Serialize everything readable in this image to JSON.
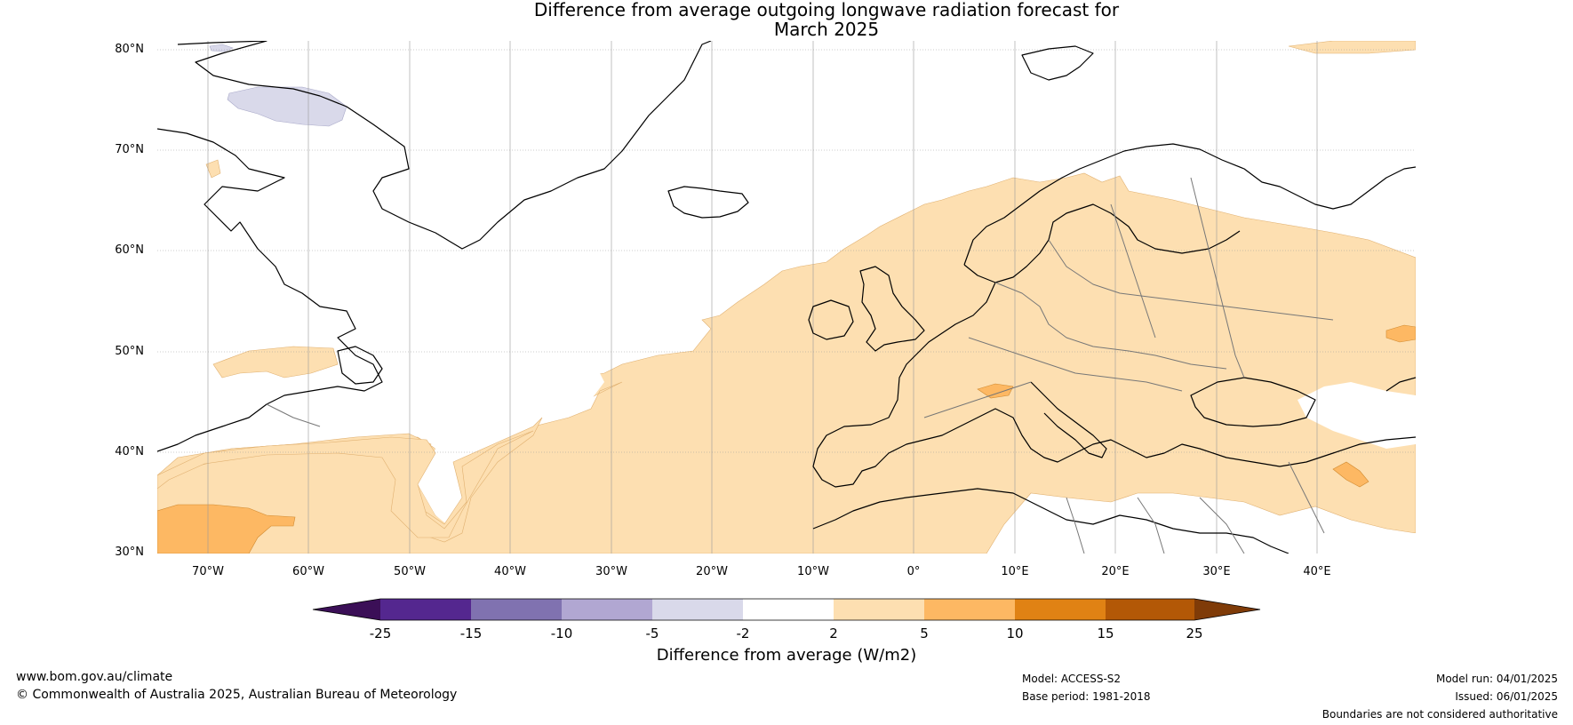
{
  "title_line1": "Difference from average outgoing longwave radiation forecast for",
  "title_line2": "March 2025",
  "lat_labels": [
    "80°N",
    "70°N",
    "60°N",
    "50°N",
    "40°N",
    "30°N"
  ],
  "lon_labels": [
    "70°W",
    "60°W",
    "50°W",
    "40°W",
    "30°W",
    "20°W",
    "10°W",
    "0°",
    "10°E",
    "20°E",
    "30°E",
    "40°E"
  ],
  "colorbar": {
    "ticks": [
      "-25",
      "-15",
      "-10",
      "-5",
      "-2",
      "2",
      "5",
      "10",
      "15",
      "25"
    ],
    "colors": [
      "#3b0f57",
      "#54278f",
      "#8072b0",
      "#b1a7d2",
      "#d9d9ea",
      "#ffffff",
      "#fddfb1",
      "#fdb863",
      "#e08214",
      "#b35806",
      "#7f3b08"
    ],
    "title": "Difference from average (W/m2)"
  },
  "footer": {
    "website": "www.bom.gov.au/climate",
    "copyright": "© Commonwealth of Australia 2025, Australian Bureau of Meteorology",
    "model": "Model: ACCESS-S2",
    "base_period": "Base period: 1981-2018",
    "model_run": "Model run: 04/01/2025",
    "issued": "Issued: 06/01/2025",
    "disclaimer": "Boundaries are not considered authoritative"
  }
}
